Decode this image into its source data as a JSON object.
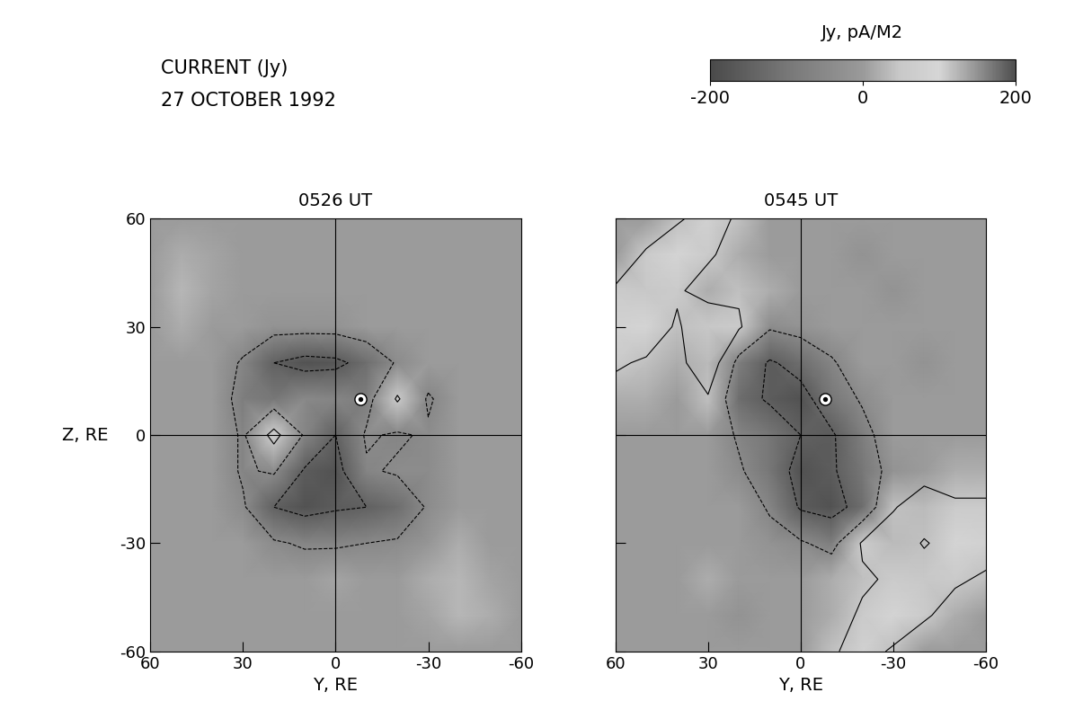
{
  "figure": {
    "title_lines": [
      "CURRENT (Jy)",
      "27 OCTOBER 1992"
    ],
    "colorbar": {
      "label": "Jy, pA/M2",
      "range": [
        -200,
        200
      ],
      "ticks": [
        -200,
        0,
        200
      ]
    }
  },
  "chart_data": [
    {
      "type": "heatmap",
      "title": "0526 UT",
      "x_label": "Y, RE",
      "y_label": "Z, RE",
      "xlim": [
        60,
        -60
      ],
      "ylim": [
        -60,
        60
      ],
      "xticks": [
        60,
        30,
        0,
        -30,
        -60
      ],
      "yticks": [
        -60,
        -30,
        0,
        30,
        60
      ],
      "y": [
        60,
        50,
        40,
        30,
        20,
        10,
        0,
        -10,
        -20,
        -30,
        -40,
        -50,
        -60
      ],
      "z": [
        60,
        50,
        40,
        30,
        20,
        10,
        0,
        -10,
        -20,
        -30,
        -40,
        -50,
        -60
      ],
      "contour_levels": [
        -150,
        -50,
        50
      ],
      "point": {
        "y": -8,
        "z": 10
      },
      "cells": [
        [
          0,
          0,
          0,
          0,
          0,
          0,
          0,
          0,
          0,
          0,
          0,
          0,
          0
        ],
        [
          0,
          20,
          10,
          0,
          0,
          0,
          0,
          0,
          0,
          0,
          0,
          0,
          0
        ],
        [
          0,
          30,
          10,
          0,
          0,
          0,
          0,
          0,
          0,
          0,
          0,
          0,
          0
        ],
        [
          0,
          20,
          0,
          0,
          -20,
          -20,
          -20,
          0,
          0,
          0,
          0,
          0,
          0
        ],
        [
          0,
          0,
          0,
          -60,
          -150,
          -180,
          -170,
          -120,
          -40,
          0,
          0,
          0,
          0
        ],
        [
          0,
          0,
          0,
          -80,
          -100,
          -50,
          -60,
          -80,
          60,
          -60,
          0,
          0,
          0
        ],
        [
          0,
          0,
          0,
          -60,
          80,
          -60,
          -150,
          -40,
          -60,
          -40,
          0,
          0,
          0
        ],
        [
          0,
          0,
          0,
          -60,
          -40,
          -160,
          -180,
          -60,
          -40,
          -40,
          0,
          0,
          0
        ],
        [
          0,
          0,
          0,
          -40,
          -150,
          -180,
          -160,
          -150,
          -120,
          -40,
          0,
          0,
          0
        ],
        [
          0,
          0,
          0,
          0,
          -40,
          -60,
          -60,
          -50,
          -40,
          -10,
          20,
          0,
          0
        ],
        [
          0,
          0,
          0,
          0,
          0,
          0,
          10,
          0,
          0,
          20,
          30,
          10,
          0
        ],
        [
          0,
          0,
          0,
          0,
          0,
          0,
          0,
          0,
          0,
          10,
          30,
          20,
          0
        ],
        [
          0,
          0,
          0,
          0,
          0,
          0,
          0,
          0,
          0,
          0,
          0,
          0,
          0
        ]
      ]
    },
    {
      "type": "heatmap",
      "title": "0545 UT",
      "x_label": "Y, RE",
      "xlim": [
        60,
        -60
      ],
      "ylim": [
        -60,
        60
      ],
      "xticks": [
        60,
        30,
        0,
        -30,
        -60
      ],
      "yticks": [
        -60,
        -30,
        0,
        30,
        60
      ],
      "tick_labels": "x",
      "y": [
        60,
        50,
        40,
        30,
        20,
        10,
        0,
        -10,
        -20,
        -30,
        -40,
        -50,
        -60
      ],
      "z": [
        60,
        50,
        40,
        30,
        20,
        10,
        0,
        -10,
        -20,
        -30,
        -40,
        -50,
        -60
      ],
      "contour_levels": [
        -150,
        -50,
        50
      ],
      "point": {
        "y": -8,
        "z": 10
      },
      "cells": [
        [
          0,
          0,
          40,
          80,
          40,
          0,
          0,
          0,
          0,
          0,
          0,
          0,
          0
        ],
        [
          0,
          60,
          100,
          60,
          20,
          0,
          0,
          0,
          -20,
          0,
          0,
          0,
          0
        ],
        [
          60,
          110,
          60,
          20,
          40,
          20,
          0,
          0,
          0,
          -20,
          0,
          0,
          0
        ],
        [
          80,
          100,
          40,
          110,
          60,
          -40,
          -20,
          0,
          0,
          0,
          0,
          0,
          0
        ],
        [
          60,
          40,
          20,
          120,
          -80,
          -160,
          -120,
          -60,
          0,
          0,
          -20,
          0,
          0
        ],
        [
          20,
          20,
          0,
          40,
          -120,
          -160,
          -180,
          -100,
          -40,
          0,
          0,
          0,
          0
        ],
        [
          0,
          0,
          0,
          0,
          -60,
          -100,
          -150,
          -160,
          -80,
          0,
          0,
          0,
          0
        ],
        [
          0,
          0,
          0,
          0,
          -40,
          -100,
          -180,
          -160,
          -100,
          -20,
          0,
          20,
          20
        ],
        [
          0,
          0,
          0,
          0,
          0,
          -60,
          -160,
          -180,
          -120,
          40,
          120,
          60,
          60
        ],
        [
          0,
          0,
          0,
          0,
          0,
          -20,
          -40,
          -80,
          60,
          120,
          40,
          100,
          80
        ],
        [
          0,
          0,
          0,
          20,
          0,
          0,
          0,
          20,
          40,
          60,
          110,
          60,
          40
        ],
        [
          0,
          0,
          0,
          0,
          -20,
          0,
          0,
          20,
          60,
          100,
          60,
          20,
          0
        ],
        [
          0,
          0,
          0,
          0,
          0,
          0,
          0,
          40,
          80,
          40,
          0,
          0,
          0
        ]
      ]
    }
  ]
}
